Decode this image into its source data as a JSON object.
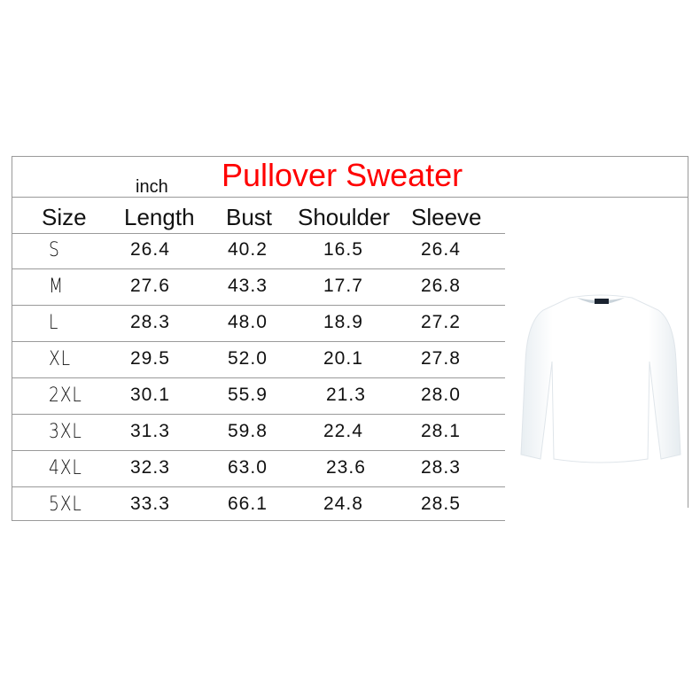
{
  "title": "Pullover Sweater",
  "unit": "inch",
  "colors": {
    "title": "#ff0000",
    "lines": "#9a9a9a"
  },
  "columns": [
    "Size",
    "Length",
    "Bust",
    "Shoulder",
    "Sleeve"
  ],
  "rows": [
    [
      "S",
      "26.4",
      "40.2",
      "16.5",
      "26.4"
    ],
    [
      "M",
      "27.6",
      "43.3",
      "17.7",
      "26.8"
    ],
    [
      "L",
      "28.3",
      "48.0",
      "18.9",
      "27.2"
    ],
    [
      "XL",
      "29.5",
      "52.0",
      "20.1",
      "27.8"
    ],
    [
      "2XL",
      "30.1",
      "55.9",
      "21.3",
      "28.0"
    ],
    [
      "3XL",
      "31.3",
      "59.8",
      "22.4",
      "28.1"
    ],
    [
      "4XL",
      "32.3",
      "63.0",
      "23.6",
      "28.3"
    ],
    [
      "5XL",
      "33.3",
      "66.1",
      "24.8",
      "28.5"
    ]
  ],
  "image": "white-crewneck-sweater"
}
